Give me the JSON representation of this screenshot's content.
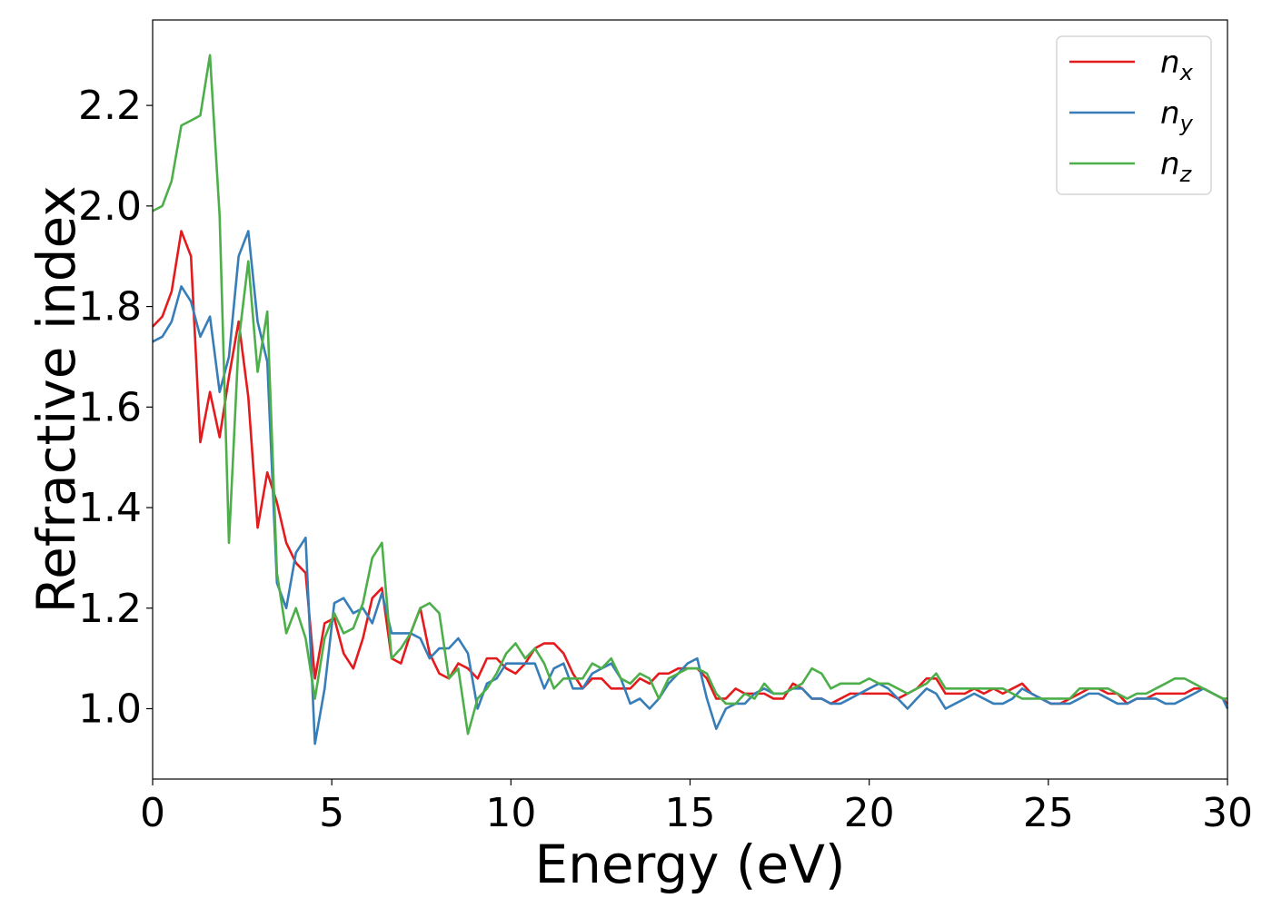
{
  "chart_data": {
    "type": "line",
    "xlabel": "Energy (eV)",
    "ylabel": "Refractive index",
    "xlim": [
      0,
      30
    ],
    "ylim": [
      0.86,
      2.37
    ],
    "xticks": [
      0,
      5,
      10,
      15,
      20,
      25,
      30
    ],
    "yticks": [
      1.0,
      1.2,
      1.4,
      1.6,
      1.8,
      2.0,
      2.2
    ],
    "grid": false,
    "legend_position": "top-right",
    "series": [
      {
        "name": "n",
        "subscript": "x",
        "color": "#e41a1c",
        "x": [
          0,
          0.27,
          0.53,
          0.8,
          1.07,
          1.33,
          1.6,
          1.87,
          2.13,
          2.4,
          2.67,
          2.93,
          3.2,
          3.47,
          3.73,
          4.0,
          4.27,
          4.53,
          4.8,
          5.07,
          5.33,
          5.6,
          5.87,
          6.13,
          6.4,
          6.67,
          6.93,
          7.2,
          7.47,
          7.73,
          8.0,
          8.27,
          8.53,
          8.8,
          9.07,
          9.33,
          9.6,
          9.87,
          10.13,
          10.4,
          10.67,
          10.93,
          11.2,
          11.47,
          11.73,
          12.0,
          12.27,
          12.53,
          12.8,
          13.07,
          13.33,
          13.6,
          13.87,
          14.13,
          14.4,
          14.67,
          14.93,
          15.2,
          15.47,
          15.73,
          16.0,
          16.27,
          16.53,
          16.8,
          17.07,
          17.33,
          17.6,
          17.87,
          18.13,
          18.4,
          18.67,
          18.93,
          19.2,
          19.47,
          19.73,
          20.0,
          20.27,
          20.53,
          20.8,
          21.07,
          21.33,
          21.6,
          21.87,
          22.13,
          22.4,
          22.67,
          22.93,
          23.2,
          23.47,
          23.73,
          24.0,
          24.27,
          24.53,
          24.8,
          25.07,
          25.33,
          25.6,
          25.87,
          26.13,
          26.4,
          26.67,
          26.93,
          27.2,
          27.47,
          27.73,
          28.0,
          28.27,
          28.53,
          28.8,
          29.07,
          29.33,
          29.6,
          29.87,
          30.0
        ],
        "y": [
          1.76,
          1.78,
          1.83,
          1.95,
          1.9,
          1.53,
          1.63,
          1.54,
          1.66,
          1.77,
          1.62,
          1.36,
          1.47,
          1.41,
          1.33,
          1.29,
          1.27,
          1.06,
          1.17,
          1.18,
          1.11,
          1.08,
          1.14,
          1.22,
          1.24,
          1.1,
          1.09,
          1.15,
          1.2,
          1.11,
          1.07,
          1.06,
          1.09,
          1.08,
          1.06,
          1.1,
          1.1,
          1.08,
          1.07,
          1.09,
          1.12,
          1.13,
          1.13,
          1.11,
          1.07,
          1.04,
          1.06,
          1.06,
          1.04,
          1.04,
          1.04,
          1.06,
          1.05,
          1.07,
          1.07,
          1.08,
          1.08,
          1.08,
          1.06,
          1.02,
          1.02,
          1.04,
          1.03,
          1.03,
          1.03,
          1.02,
          1.02,
          1.05,
          1.04,
          1.02,
          1.02,
          1.01,
          1.02,
          1.03,
          1.03,
          1.03,
          1.03,
          1.03,
          1.02,
          1.03,
          1.04,
          1.06,
          1.06,
          1.03,
          1.03,
          1.03,
          1.04,
          1.03,
          1.04,
          1.03,
          1.04,
          1.05,
          1.03,
          1.02,
          1.01,
          1.01,
          1.02,
          1.03,
          1.04,
          1.04,
          1.03,
          1.03,
          1.01,
          1.02,
          1.02,
          1.03,
          1.03,
          1.03,
          1.03,
          1.04,
          1.04,
          1.03,
          1.02,
          1.01
        ]
      },
      {
        "name": "n",
        "subscript": "y",
        "color": "#377eb8",
        "x": [
          0,
          0.27,
          0.53,
          0.8,
          1.07,
          1.33,
          1.6,
          1.87,
          2.13,
          2.4,
          2.67,
          2.93,
          3.2,
          3.47,
          3.73,
          4.0,
          4.27,
          4.53,
          4.8,
          5.07,
          5.33,
          5.6,
          5.87,
          6.13,
          6.4,
          6.67,
          6.93,
          7.2,
          7.47,
          7.73,
          8.0,
          8.27,
          8.53,
          8.8,
          9.07,
          9.33,
          9.6,
          9.87,
          10.13,
          10.4,
          10.67,
          10.93,
          11.2,
          11.47,
          11.73,
          12.0,
          12.27,
          12.53,
          12.8,
          13.07,
          13.33,
          13.6,
          13.87,
          14.13,
          14.4,
          14.67,
          14.93,
          15.2,
          15.47,
          15.73,
          16.0,
          16.27,
          16.53,
          16.8,
          17.07,
          17.33,
          17.6,
          17.87,
          18.13,
          18.4,
          18.67,
          18.93,
          19.2,
          19.47,
          19.73,
          20.0,
          20.27,
          20.53,
          20.8,
          21.07,
          21.33,
          21.6,
          21.87,
          22.13,
          22.4,
          22.67,
          22.93,
          23.2,
          23.47,
          23.73,
          24.0,
          24.27,
          24.53,
          24.8,
          25.07,
          25.33,
          25.6,
          25.87,
          26.13,
          26.4,
          26.67,
          26.93,
          27.2,
          27.47,
          27.73,
          28.0,
          28.27,
          28.53,
          28.8,
          29.07,
          29.33,
          29.6,
          29.87,
          30.0
        ],
        "y": [
          1.73,
          1.74,
          1.77,
          1.84,
          1.81,
          1.74,
          1.78,
          1.63,
          1.7,
          1.9,
          1.95,
          1.77,
          1.69,
          1.25,
          1.2,
          1.31,
          1.34,
          0.93,
          1.04,
          1.21,
          1.22,
          1.19,
          1.2,
          1.17,
          1.23,
          1.15,
          1.15,
          1.15,
          1.14,
          1.1,
          1.12,
          1.12,
          1.14,
          1.11,
          1.0,
          1.05,
          1.06,
          1.09,
          1.09,
          1.09,
          1.09,
          1.04,
          1.08,
          1.09,
          1.04,
          1.04,
          1.07,
          1.08,
          1.09,
          1.06,
          1.01,
          1.02,
          1.0,
          1.02,
          1.05,
          1.07,
          1.09,
          1.1,
          1.02,
          0.96,
          1.0,
          1.01,
          1.01,
          1.03,
          1.04,
          1.03,
          1.03,
          1.04,
          1.04,
          1.02,
          1.02,
          1.01,
          1.01,
          1.02,
          1.03,
          1.04,
          1.05,
          1.04,
          1.02,
          1.0,
          1.02,
          1.04,
          1.03,
          1.0,
          1.01,
          1.02,
          1.03,
          1.02,
          1.01,
          1.01,
          1.02,
          1.04,
          1.03,
          1.02,
          1.01,
          1.01,
          1.01,
          1.02,
          1.03,
          1.03,
          1.02,
          1.01,
          1.01,
          1.02,
          1.02,
          1.02,
          1.01,
          1.01,
          1.02,
          1.03,
          1.04,
          1.03,
          1.02,
          1.0
        ]
      },
      {
        "name": "n",
        "subscript": "z",
        "color": "#4daf4a",
        "x": [
          0,
          0.27,
          0.53,
          0.8,
          1.07,
          1.33,
          1.6,
          1.87,
          2.13,
          2.4,
          2.67,
          2.93,
          3.2,
          3.47,
          3.73,
          4.0,
          4.27,
          4.53,
          4.8,
          5.07,
          5.33,
          5.6,
          5.87,
          6.13,
          6.4,
          6.67,
          6.93,
          7.2,
          7.47,
          7.73,
          8.0,
          8.27,
          8.53,
          8.8,
          9.07,
          9.33,
          9.6,
          9.87,
          10.13,
          10.4,
          10.67,
          10.93,
          11.2,
          11.47,
          11.73,
          12.0,
          12.27,
          12.53,
          12.8,
          13.07,
          13.33,
          13.6,
          13.87,
          14.13,
          14.4,
          14.67,
          14.93,
          15.2,
          15.47,
          15.73,
          16.0,
          16.27,
          16.53,
          16.8,
          17.07,
          17.33,
          17.6,
          17.87,
          18.13,
          18.4,
          18.67,
          18.93,
          19.2,
          19.47,
          19.73,
          20.0,
          20.27,
          20.53,
          20.8,
          21.07,
          21.33,
          21.6,
          21.87,
          22.13,
          22.4,
          22.67,
          22.93,
          23.2,
          23.47,
          23.73,
          24.0,
          24.27,
          24.53,
          24.8,
          25.07,
          25.33,
          25.6,
          25.87,
          26.13,
          26.4,
          26.67,
          26.93,
          27.2,
          27.47,
          27.73,
          28.0,
          28.27,
          28.53,
          28.8,
          29.07,
          29.33,
          29.6,
          29.87,
          30.0
        ],
        "y": [
          1.99,
          2.0,
          2.05,
          2.16,
          2.17,
          2.18,
          2.3,
          1.98,
          1.33,
          1.73,
          1.89,
          1.67,
          1.79,
          1.27,
          1.15,
          1.2,
          1.14,
          1.02,
          1.14,
          1.19,
          1.15,
          1.16,
          1.21,
          1.3,
          1.33,
          1.1,
          1.12,
          1.15,
          1.2,
          1.21,
          1.19,
          1.06,
          1.08,
          0.95,
          1.02,
          1.04,
          1.07,
          1.11,
          1.13,
          1.1,
          1.12,
          1.09,
          1.04,
          1.06,
          1.06,
          1.06,
          1.09,
          1.08,
          1.1,
          1.06,
          1.05,
          1.07,
          1.06,
          1.02,
          1.06,
          1.07,
          1.08,
          1.08,
          1.07,
          1.03,
          1.01,
          1.01,
          1.03,
          1.02,
          1.05,
          1.03,
          1.03,
          1.04,
          1.05,
          1.08,
          1.07,
          1.04,
          1.05,
          1.05,
          1.05,
          1.06,
          1.05,
          1.05,
          1.04,
          1.03,
          1.04,
          1.05,
          1.07,
          1.04,
          1.04,
          1.04,
          1.04,
          1.04,
          1.04,
          1.04,
          1.03,
          1.02,
          1.02,
          1.02,
          1.02,
          1.02,
          1.02,
          1.04,
          1.04,
          1.04,
          1.04,
          1.03,
          1.02,
          1.03,
          1.03,
          1.04,
          1.05,
          1.06,
          1.06,
          1.05,
          1.04,
          1.03,
          1.02,
          1.02
        ]
      }
    ]
  }
}
